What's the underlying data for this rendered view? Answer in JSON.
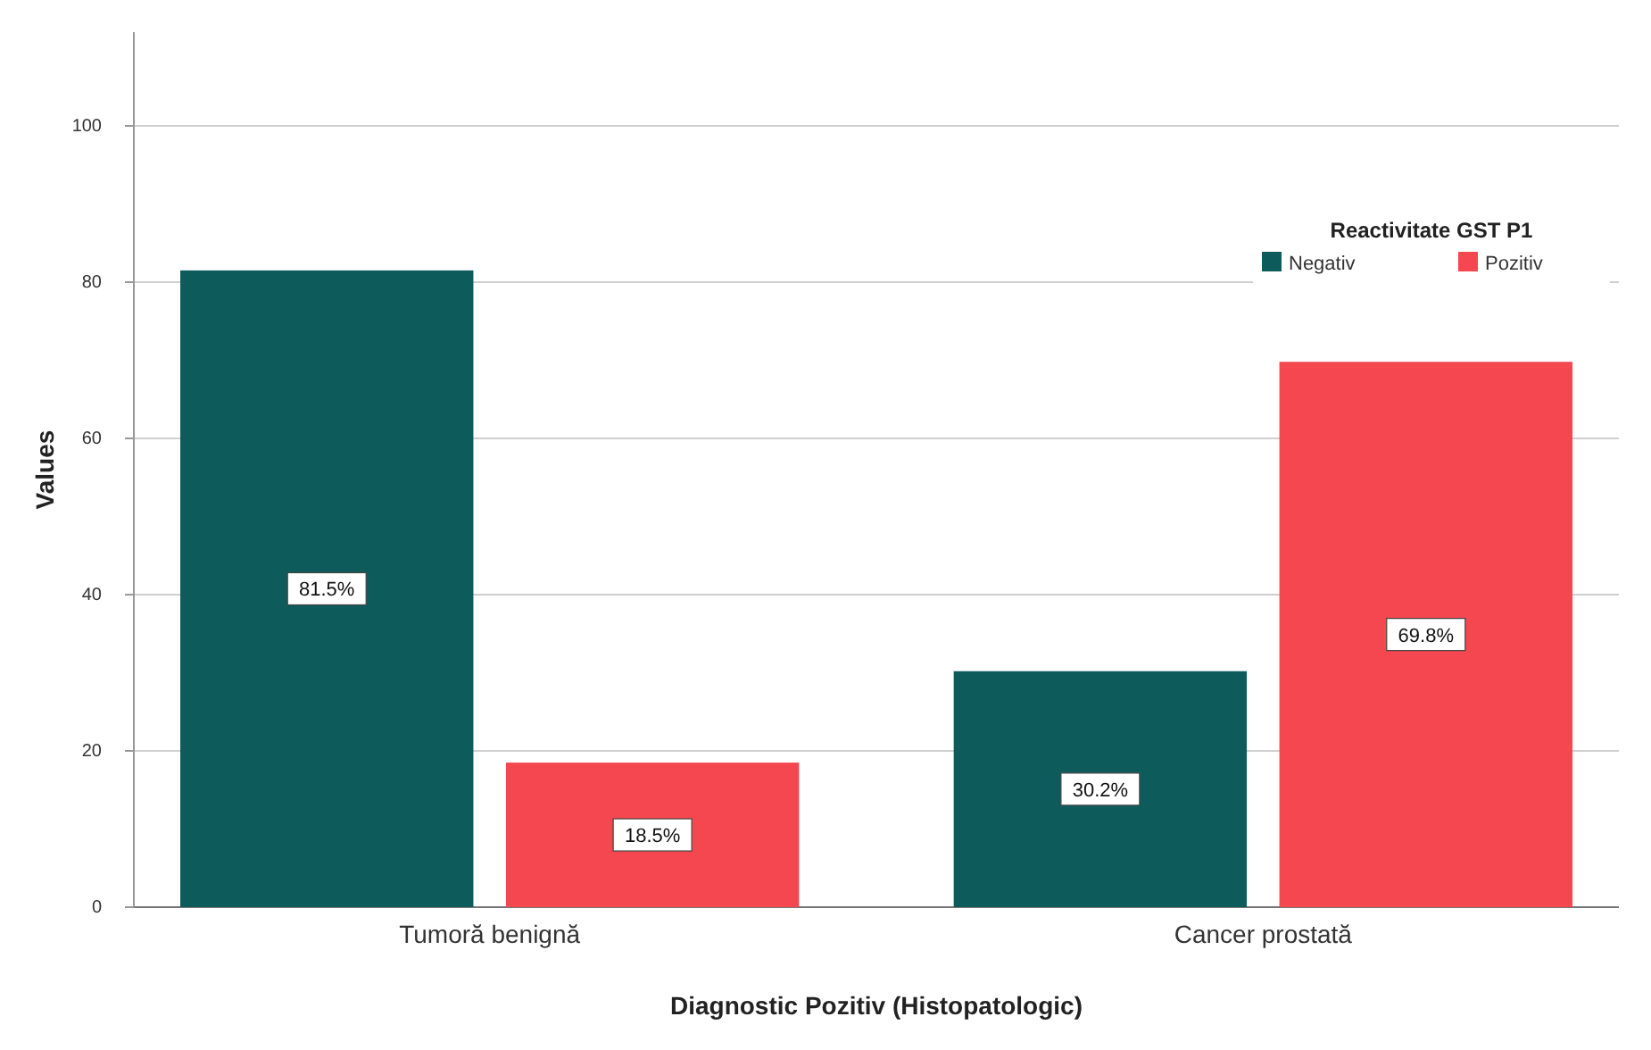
{
  "chart_data": {
    "type": "bar",
    "xlabel": "Diagnostic Pozitiv (Histopatologic)",
    "ylabel": "Values",
    "legend_title": "Reactivitate GST P1",
    "categories": [
      "Tumoră benignă",
      "Cancer prostată"
    ],
    "series": [
      {
        "name": "Negativ",
        "color": "#0e5b5b",
        "values": [
          81.5,
          30.2
        ],
        "value_labels": [
          "81.5%",
          "30.2%"
        ]
      },
      {
        "name": "Pozitiv",
        "color": "#f4474f",
        "values": [
          18.5,
          69.8
        ],
        "value_labels": [
          "18.5%",
          "69.8%"
        ]
      }
    ],
    "ylim": [
      0,
      112
    ],
    "yticks": [
      0,
      20,
      40,
      60,
      80,
      100
    ],
    "grid": "y",
    "legend": "top right"
  }
}
